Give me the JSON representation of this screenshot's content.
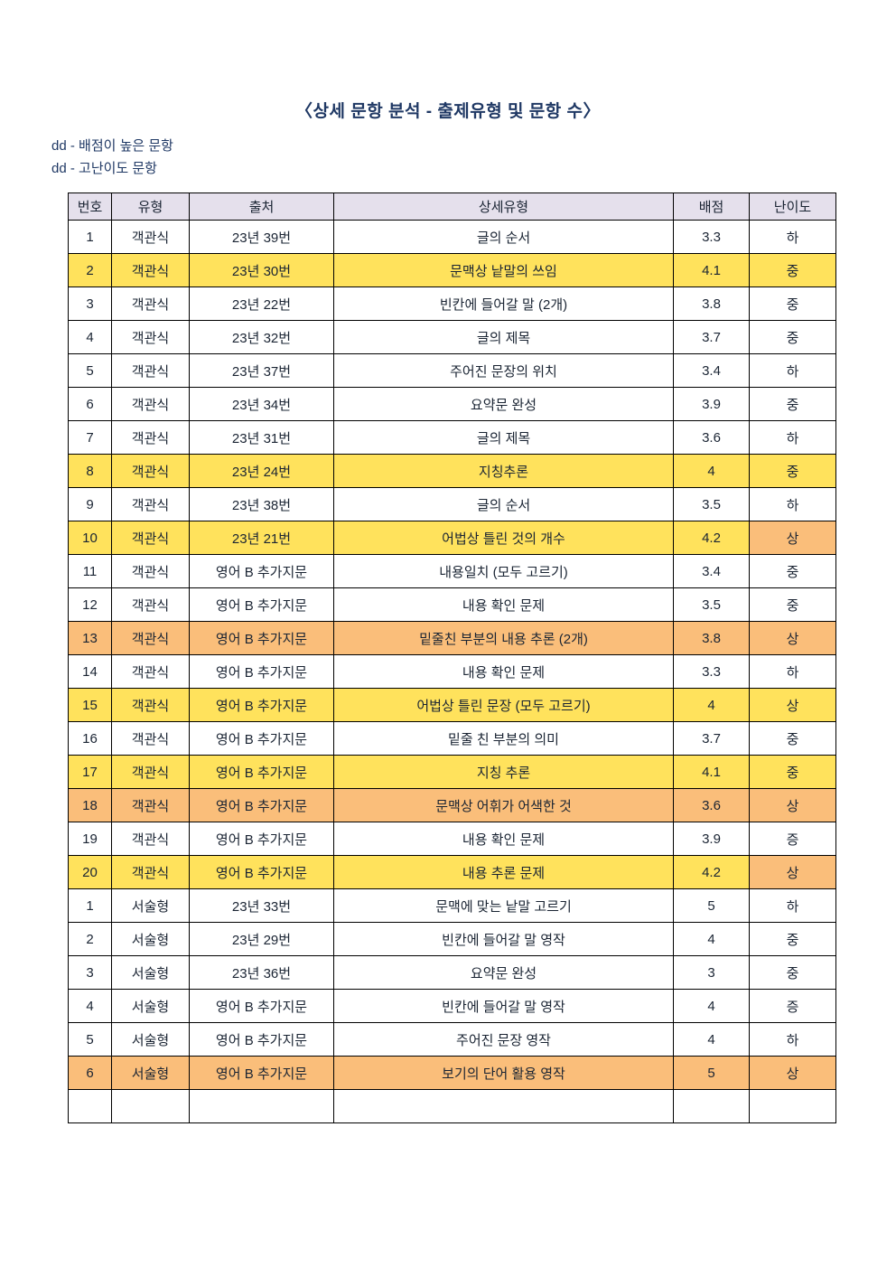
{
  "page": {
    "title": "〈상세 문항 분석 - 출제유형 및  문항 수〉",
    "legend": [
      "dd - 배점이 높은 문항",
      "dd - 고난이도 문항"
    ]
  },
  "colors": {
    "title": "#1F3864",
    "header_bg": "#E5E0EC",
    "highlight_yellow": "#FFE25C",
    "highlight_orange": "#FABE7A"
  },
  "table": {
    "keys": [
      "no",
      "type",
      "source",
      "detail",
      "points",
      "difficulty"
    ],
    "headers": [
      "번호",
      "유형",
      "출처",
      "상세유형",
      "배점",
      "난이도"
    ],
    "rows": [
      {
        "cells": [
          "1",
          "객관식",
          "23년 39번",
          "글의 순서",
          "3.3",
          "하"
        ],
        "bg": "none"
      },
      {
        "cells": [
          "2",
          "객관식",
          "23년 30번",
          "문맥상 낱말의 쓰임",
          "4.1",
          "중"
        ],
        "bg": "yellow"
      },
      {
        "cells": [
          "3",
          "객관식",
          "23년 22번",
          "빈칸에 들어갈 말 (2개)",
          "3.8",
          "중"
        ],
        "bg": "none"
      },
      {
        "cells": [
          "4",
          "객관식",
          "23년 32번",
          "글의 제목",
          "3.7",
          "중"
        ],
        "bg": "none"
      },
      {
        "cells": [
          "5",
          "객관식",
          "23년 37번",
          "주어진 문장의 위치",
          "3.4",
          "하"
        ],
        "bg": "none"
      },
      {
        "cells": [
          "6",
          "객관식",
          "23년 34번",
          "요약문 완성",
          "3.9",
          "중"
        ],
        "bg": "none"
      },
      {
        "cells": [
          "7",
          "객관식",
          "23년 31번",
          "글의 제목",
          "3.6",
          "하"
        ],
        "bg": "none"
      },
      {
        "cells": [
          "8",
          "객관식",
          "23년 24번",
          "지칭추론",
          "4",
          "중"
        ],
        "bg": "yellow"
      },
      {
        "cells": [
          "9",
          "객관식",
          "23년 38번",
          "글의 순서",
          "3.5",
          "하"
        ],
        "bg": "none"
      },
      {
        "cells": [
          "10",
          "객관식",
          "23년 21번",
          "어법상 틀린 것의 개수",
          "4.2",
          "상"
        ],
        "bg": "yellow",
        "diff_bg": "orange"
      },
      {
        "cells": [
          "11",
          "객관식",
          "영어 B 추가지문",
          "내용일치 (모두 고르기)",
          "3.4",
          "중"
        ],
        "bg": "none"
      },
      {
        "cells": [
          "12",
          "객관식",
          "영어 B 추가지문",
          "내용 확인 문제",
          "3.5",
          "중"
        ],
        "bg": "none"
      },
      {
        "cells": [
          "13",
          "객관식",
          "영어 B 추가지문",
          "밑줄친 부분의 내용 추론 (2개)",
          "3.8",
          "상"
        ],
        "bg": "orange"
      },
      {
        "cells": [
          "14",
          "객관식",
          "영어 B 추가지문",
          "내용 확인 문제",
          "3.3",
          "하"
        ],
        "bg": "none"
      },
      {
        "cells": [
          "15",
          "객관식",
          "영어 B 추가지문",
          "어법상 틀린 문장 (모두 고르기)",
          "4",
          "상"
        ],
        "bg": "yellow"
      },
      {
        "cells": [
          "16",
          "객관식",
          "영어 B 추가지문",
          "밑줄 친 부분의 의미",
          "3.7",
          "중"
        ],
        "bg": "none"
      },
      {
        "cells": [
          "17",
          "객관식",
          "영어 B 추가지문",
          "지칭 추론",
          "4.1",
          "중"
        ],
        "bg": "yellow"
      },
      {
        "cells": [
          "18",
          "객관식",
          "영어 B 추가지문",
          "문맥상 어휘가 어색한 것",
          "3.6",
          "상"
        ],
        "bg": "orange"
      },
      {
        "cells": [
          "19",
          "객관식",
          "영어 B 추가지문",
          "내용 확인 문제",
          "3.9",
          "증"
        ],
        "bg": "none"
      },
      {
        "cells": [
          "20",
          "객관식",
          "영어 B 추가지문",
          "내용 추론 문제",
          "4.2",
          "상"
        ],
        "bg": "yellow",
        "diff_bg": "orange"
      },
      {
        "cells": [
          "1",
          "서술형",
          "23년 33번",
          "문맥에 맞는 낱말 고르기",
          "5",
          "하"
        ],
        "bg": "none"
      },
      {
        "cells": [
          "2",
          "서술형",
          "23년 29번",
          "빈칸에 들어갈 말 영작",
          "4",
          "중"
        ],
        "bg": "none"
      },
      {
        "cells": [
          "3",
          "서술형",
          "23년 36번",
          "요약문 완성",
          "3",
          "중"
        ],
        "bg": "none"
      },
      {
        "cells": [
          "4",
          "서술형",
          "영어 B 추가지문",
          "빈칸에 들어갈 말 영작",
          "4",
          "증"
        ],
        "bg": "none"
      },
      {
        "cells": [
          "5",
          "서술형",
          "영어 B 추가지문",
          "주어진 문장 영작",
          "4",
          "하"
        ],
        "bg": "none"
      },
      {
        "cells": [
          "6",
          "서술형",
          "영어 B 추가지문",
          "보기의 단어 활용 영작",
          "5",
          "상"
        ],
        "bg": "orange"
      },
      {
        "cells": [
          "",
          "",
          "",
          "",
          "",
          ""
        ],
        "bg": "none"
      }
    ]
  }
}
